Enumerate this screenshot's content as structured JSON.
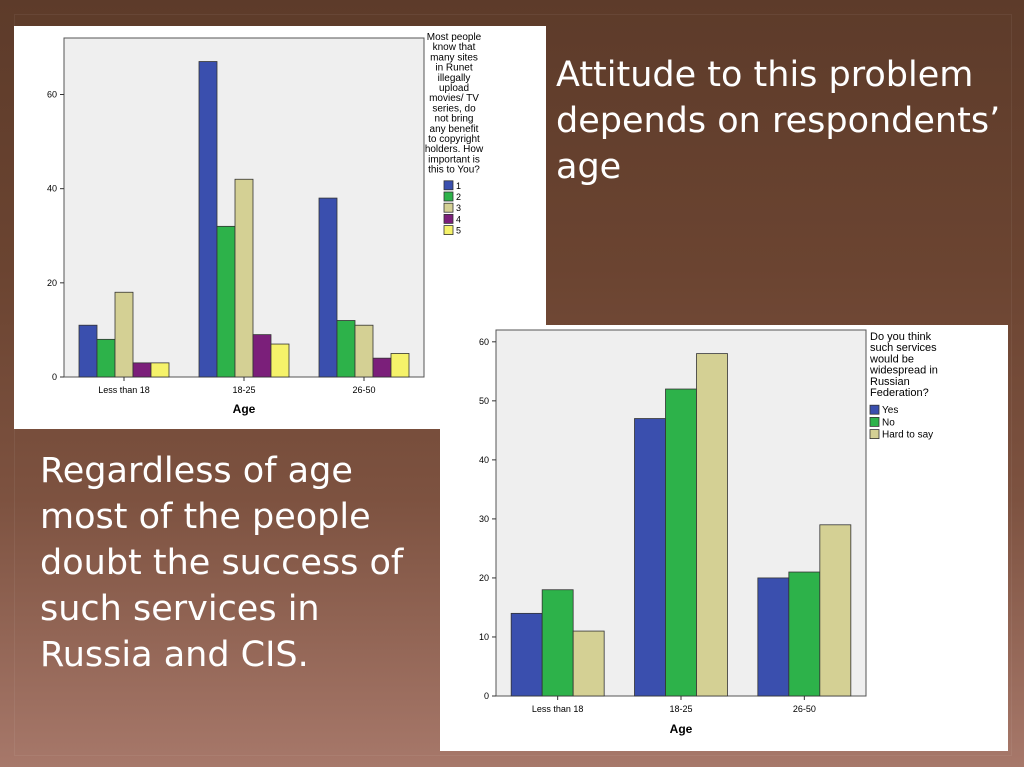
{
  "slide": {
    "heading": "Attitude to this problem depends on respondents’ age",
    "body": "Regardless of age most of the people doubt the success of such services in Russia and CIS."
  },
  "chart_data": [
    {
      "type": "bar",
      "title": "",
      "xlabel": "Age",
      "ylabel": "",
      "ylim": [
        0,
        72
      ],
      "yticks": [
        0,
        20,
        40,
        60
      ],
      "categories": [
        "Less than 18",
        "18-25",
        "26-50"
      ],
      "legend_title": "Most people know that many sites in Runet illegally upload movies/ TV series, do not bring any benefit to copyright holders. How important is this to You?",
      "legend_placement": "right",
      "series": [
        {
          "name": "1",
          "color": "#3a4fae",
          "values": [
            11,
            67,
            38
          ]
        },
        {
          "name": "2",
          "color": "#2db24a",
          "values": [
            8,
            32,
            12
          ]
        },
        {
          "name": "3",
          "color": "#d4d094",
          "values": [
            18,
            42,
            11
          ]
        },
        {
          "name": "4",
          "color": "#7b1f7a",
          "values": [
            3,
            9,
            4
          ]
        },
        {
          "name": "5",
          "color": "#f5f26a",
          "values": [
            3,
            7,
            5
          ]
        }
      ]
    },
    {
      "type": "bar",
      "title": "",
      "xlabel": "Age",
      "ylabel": "",
      "ylim": [
        0,
        62
      ],
      "yticks": [
        0,
        10,
        20,
        30,
        40,
        50,
        60
      ],
      "categories": [
        "Less than 18",
        "18-25",
        "26-50"
      ],
      "legend_title": "Do you think such services would be widespread in Russian Federation?",
      "legend_placement": "right",
      "series": [
        {
          "name": "Yes",
          "color": "#3a4fae",
          "values": [
            14,
            47,
            20
          ]
        },
        {
          "name": "No",
          "color": "#2db24a",
          "values": [
            18,
            52,
            21
          ]
        },
        {
          "name": "Hard to say",
          "color": "#d4d094",
          "values": [
            11,
            58,
            29
          ]
        }
      ]
    }
  ]
}
